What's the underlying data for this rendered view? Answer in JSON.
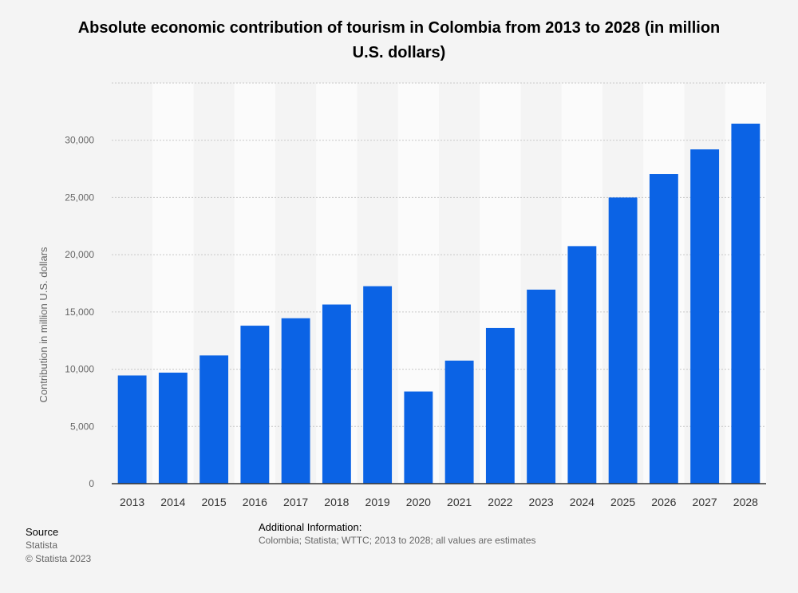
{
  "chart_data": {
    "type": "bar",
    "title": "Absolute economic contribution of tourism in Colombia from 2013 to 2028 (in million U.S. dollars)",
    "xlabel": "",
    "ylabel": "Contribution in million U.S. dollars",
    "categories": [
      "2013",
      "2014",
      "2015",
      "2016",
      "2017",
      "2018",
      "2019",
      "2020",
      "2021",
      "2022",
      "2023",
      "2024",
      "2025",
      "2026",
      "2027",
      "2028"
    ],
    "values": [
      9450,
      9700,
      11200,
      13800,
      14450,
      15650,
      17250,
      8050,
      10750,
      13600,
      16950,
      20750,
      25000,
      27050,
      29200,
      31450
    ],
    "ylim": [
      0,
      35000
    ],
    "yticks": [
      0,
      5000,
      10000,
      15000,
      20000,
      25000,
      30000
    ],
    "ytick_labels": [
      "0",
      "5,000",
      "10,000",
      "15,000",
      "20,000",
      "25,000",
      "30,000"
    ],
    "grid": true,
    "bar_color": "#0b63e5"
  },
  "footer": {
    "source_heading": "Source",
    "source_name": "Statista",
    "copyright": "© Statista 2023",
    "additional_heading": "Additional Information:",
    "additional_text": "Colombia; Statista; WTTC; 2013 to 2028; all values are estimates"
  }
}
